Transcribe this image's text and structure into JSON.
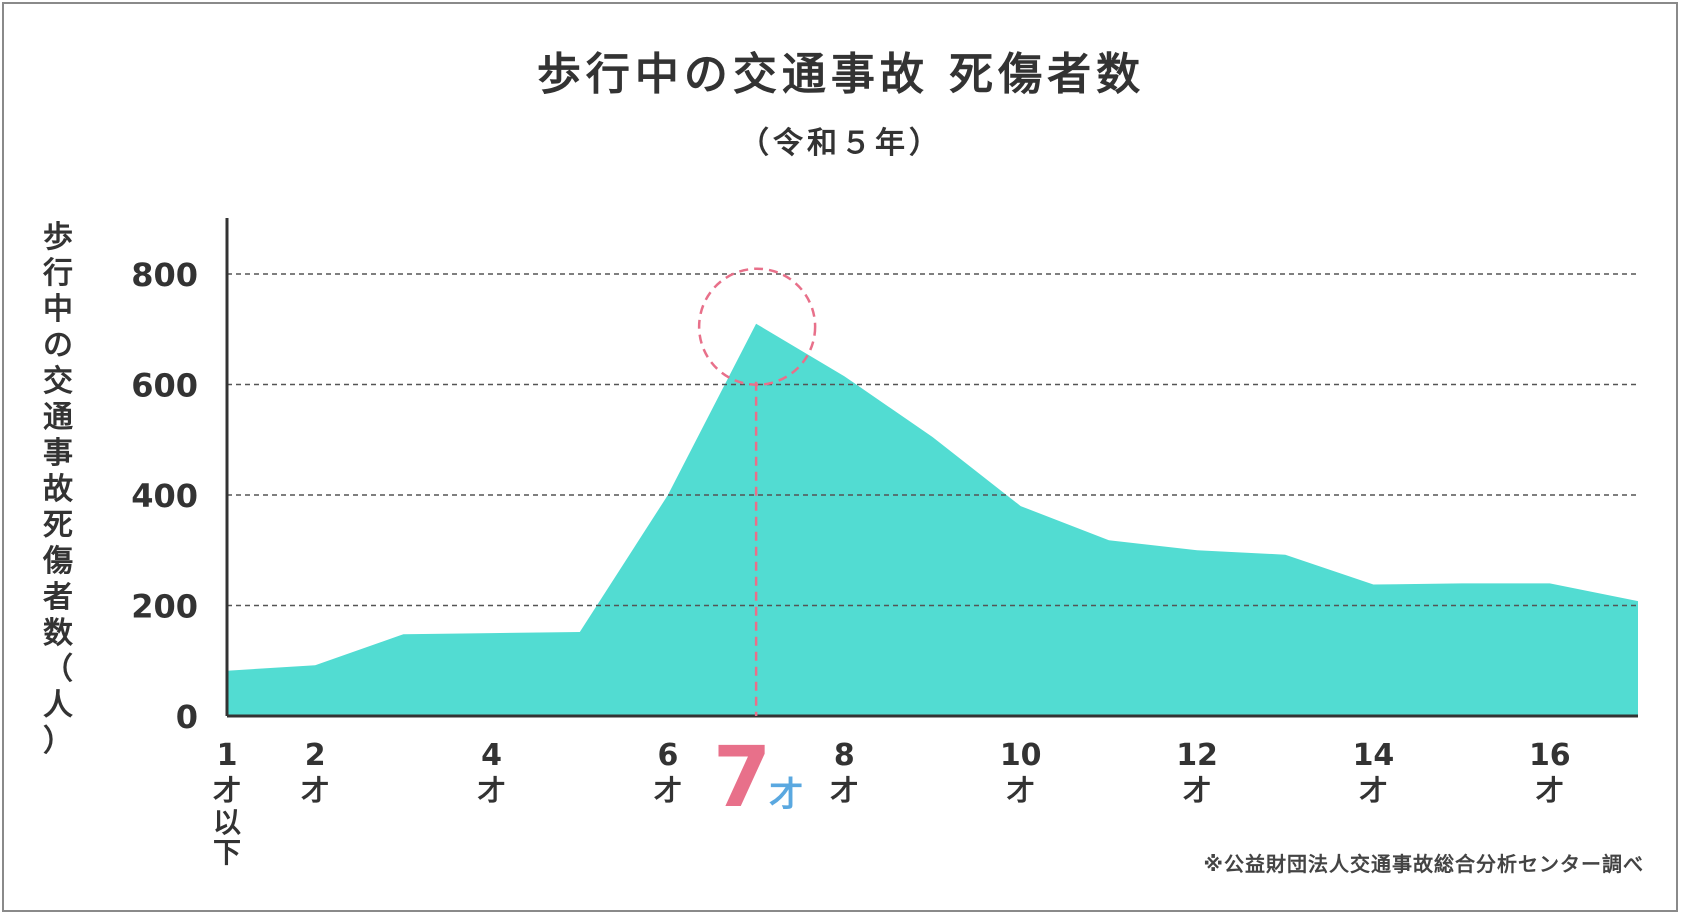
{
  "chart_data": {
    "type": "area",
    "title": "歩行中の交通事故 死傷者数",
    "subtitle": "（令和５年）",
    "ylabel": "歩行中の交通事故死傷者数（人）",
    "xlabel": "",
    "ylim": [
      0,
      900
    ],
    "yticks": [
      0,
      200,
      400,
      600,
      800
    ],
    "grid": "horizontal-dashed",
    "x": [
      1,
      2,
      3,
      4,
      5,
      6,
      7,
      8,
      9,
      10,
      11,
      12,
      13,
      14,
      15,
      16,
      17
    ],
    "series": [
      {
        "values": [
          82,
          92,
          148,
          150,
          152,
          400,
          710,
          615,
          505,
          380,
          318,
          300,
          292,
          238,
          240,
          240,
          208
        ]
      }
    ],
    "xtick_labels": [
      {
        "x": 1,
        "num": "1",
        "unit": "才",
        "extra": "以下"
      },
      {
        "x": 2,
        "num": "2",
        "unit": "才"
      },
      {
        "x": 4,
        "num": "4",
        "unit": "才"
      },
      {
        "x": 6,
        "num": "6",
        "unit": "才"
      },
      {
        "x": 8,
        "num": "8",
        "unit": "才"
      },
      {
        "x": 10,
        "num": "10",
        "unit": "才"
      },
      {
        "x": 12,
        "num": "12",
        "unit": "才"
      },
      {
        "x": 14,
        "num": "14",
        "unit": "才"
      },
      {
        "x": 16,
        "num": "16",
        "unit": "才"
      }
    ],
    "highlight": {
      "x": 7,
      "num": "7",
      "unit": "才"
    },
    "source": "※公益財団法人交通事故総合分析センター調べ",
    "colors": {
      "area": "#52dcd2",
      "axis": "#333333",
      "grid": "#555555",
      "highlight": "#e8708a",
      "highlight_unit": "#5aa8e0"
    }
  }
}
